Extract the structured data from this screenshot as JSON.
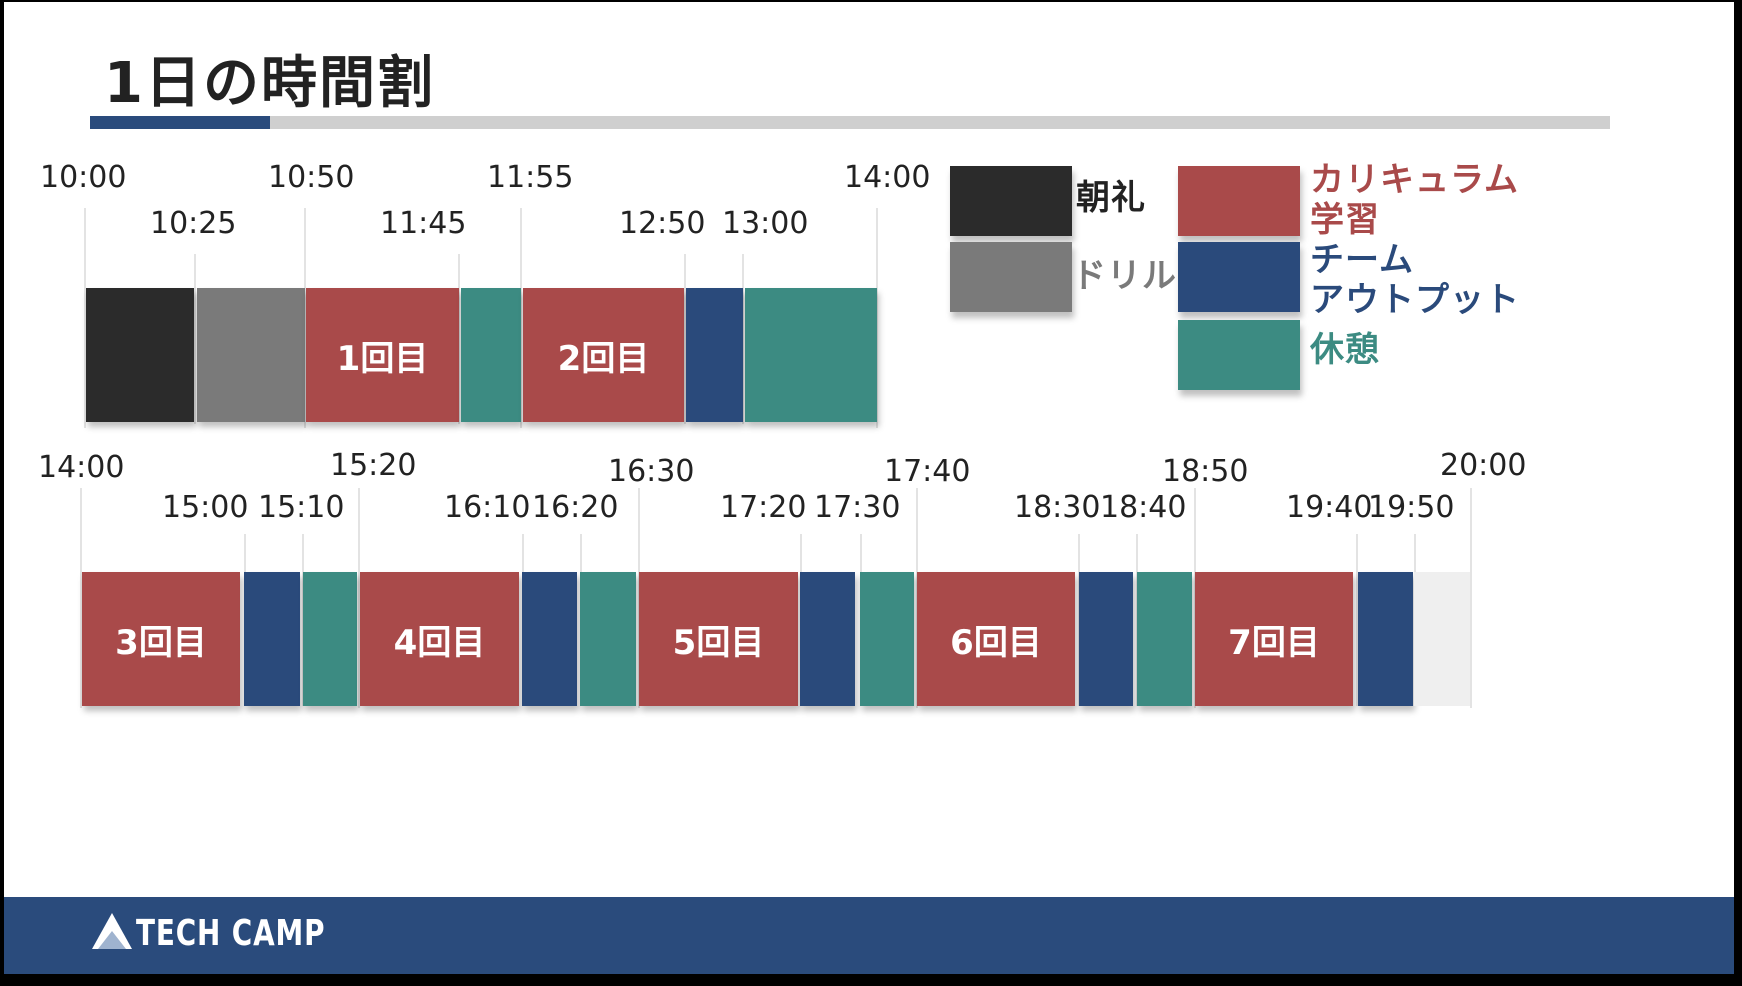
{
  "title": "1日の時間割",
  "colors": {
    "chorei": "#2b2b2b",
    "drill": "#7a7a7a",
    "curriculum": "#a94a4a",
    "team": "#2a4a7b",
    "break": "#3c8b82",
    "empty": "#efefef",
    "accent": "#2a4b7c"
  },
  "row1": {
    "times_top": [
      "10:00",
      "10:50",
      "11:55",
      "14:00"
    ],
    "times_bottom": [
      "10:25",
      "11:45",
      "12:50",
      "13:00"
    ],
    "segments": [
      {
        "type": "chorei",
        "label": ""
      },
      {
        "type": "drill",
        "label": ""
      },
      {
        "type": "curriculum",
        "label": "1回目"
      },
      {
        "type": "break",
        "label": ""
      },
      {
        "type": "curriculum",
        "label": "2回目"
      },
      {
        "type": "team",
        "label": ""
      },
      {
        "type": "break",
        "label": ""
      }
    ]
  },
  "row2": {
    "times_top": [
      "14:00",
      "15:20",
      "16:30",
      "17:40",
      "18:50",
      "20:00"
    ],
    "times_bottom": [
      "15:00",
      "15:10",
      "16:10",
      "16:20",
      "17:20",
      "17:30",
      "18:30",
      "18:40",
      "19:40",
      "19:50"
    ],
    "segments": [
      {
        "type": "curriculum",
        "label": "3回目"
      },
      {
        "type": "team",
        "label": ""
      },
      {
        "type": "break",
        "label": ""
      },
      {
        "type": "curriculum",
        "label": "4回目"
      },
      {
        "type": "team",
        "label": ""
      },
      {
        "type": "break",
        "label": ""
      },
      {
        "type": "curriculum",
        "label": "5回目"
      },
      {
        "type": "team",
        "label": ""
      },
      {
        "type": "break",
        "label": ""
      },
      {
        "type": "curriculum",
        "label": "6回目"
      },
      {
        "type": "team",
        "label": ""
      },
      {
        "type": "break",
        "label": ""
      },
      {
        "type": "curriculum",
        "label": "7回目"
      },
      {
        "type": "team",
        "label": ""
      },
      {
        "type": "empty",
        "label": ""
      }
    ]
  },
  "legend": [
    {
      "type": "chorei",
      "label": "朝礼",
      "text_color": "#222222",
      "icon": "black-swatch"
    },
    {
      "type": "drill",
      "label": "ドリル",
      "text_color": "#7a7a7a",
      "icon": "gray-swatch"
    },
    {
      "type": "curriculum",
      "label": "カリキュラム\n学習",
      "text_color": "#a94a4a",
      "icon": "red-swatch"
    },
    {
      "type": "team",
      "label": "チーム\nアウトプット",
      "text_color": "#2a4a7b",
      "icon": "blue-swatch"
    },
    {
      "type": "break",
      "label": "休憩",
      "text_color": "#3c8b82",
      "icon": "teal-swatch"
    }
  ],
  "footer": {
    "logo_text": "TECH CAMP",
    "logo_icon": "mountain-logo-icon"
  }
}
